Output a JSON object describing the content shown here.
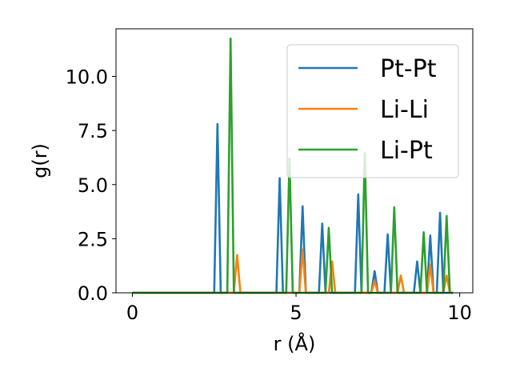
{
  "chart_data": {
    "type": "line",
    "title": "",
    "xlabel": "r (Å)",
    "ylabel": "g(r)",
    "xlim": [
      -0.5,
      10.4
    ],
    "ylim": [
      0,
      12.2
    ],
    "xticks": [
      0,
      5,
      10
    ],
    "xtick_labels": [
      "0",
      "5",
      "10"
    ],
    "yticks": [
      0.0,
      2.5,
      5.0,
      7.5,
      10.0
    ],
    "ytick_labels": [
      "0.0",
      "2.5",
      "5.0",
      "7.5",
      "10.0"
    ],
    "grid": false,
    "legend_position": "top-right",
    "series": [
      {
        "name": "Pt-Pt",
        "color": "#1f77b4",
        "x": [
          0,
          2.5,
          2.6,
          2.7,
          4.4,
          4.5,
          4.6,
          5.1,
          5.2,
          5.3,
          5.7,
          5.8,
          5.9,
          6.8,
          6.9,
          7.0,
          7.3,
          7.4,
          7.5,
          7.7,
          7.8,
          7.9,
          8.6,
          8.7,
          8.8,
          9.0,
          9.1,
          9.2,
          9.3,
          9.4,
          9.5,
          9.8
        ],
        "y": [
          0,
          0,
          7.8,
          0,
          0,
          5.3,
          0,
          0,
          4.0,
          0,
          0,
          3.2,
          0,
          0,
          4.55,
          0,
          0,
          1.0,
          0,
          0,
          2.7,
          0,
          0,
          1.45,
          0,
          0,
          2.65,
          0,
          0,
          3.7,
          0,
          0
        ]
      },
      {
        "name": "Li-Li",
        "color": "#ff7f0e",
        "x": [
          0,
          3.1,
          3.2,
          3.3,
          5.1,
          5.2,
          5.3,
          6.0,
          6.1,
          6.2,
          7.3,
          7.4,
          7.5,
          8.1,
          8.2,
          8.3,
          9.0,
          9.1,
          9.2,
          9.5,
          9.6,
          9.7,
          9.8
        ],
        "y": [
          0,
          0,
          1.75,
          0,
          0,
          2.0,
          0,
          0,
          1.45,
          0,
          0,
          0.55,
          0,
          0,
          0.8,
          0,
          0,
          1.3,
          0,
          0,
          0.8,
          0,
          0
        ]
      },
      {
        "name": "Li-Pt",
        "color": "#2ca02c",
        "x": [
          0,
          2.9,
          3.0,
          3.1,
          4.7,
          4.8,
          4.9,
          5.9,
          6.0,
          6.1,
          7.0,
          7.1,
          7.2,
          7.9,
          8.0,
          8.1,
          8.8,
          8.9,
          9.0,
          9.5,
          9.6,
          9.7,
          9.8
        ],
        "y": [
          0,
          0,
          11.75,
          0,
          0,
          6.2,
          0,
          0,
          3.0,
          0,
          0,
          6.45,
          0,
          0,
          3.95,
          0,
          0,
          2.8,
          0,
          0,
          3.55,
          0,
          0
        ]
      }
    ]
  }
}
